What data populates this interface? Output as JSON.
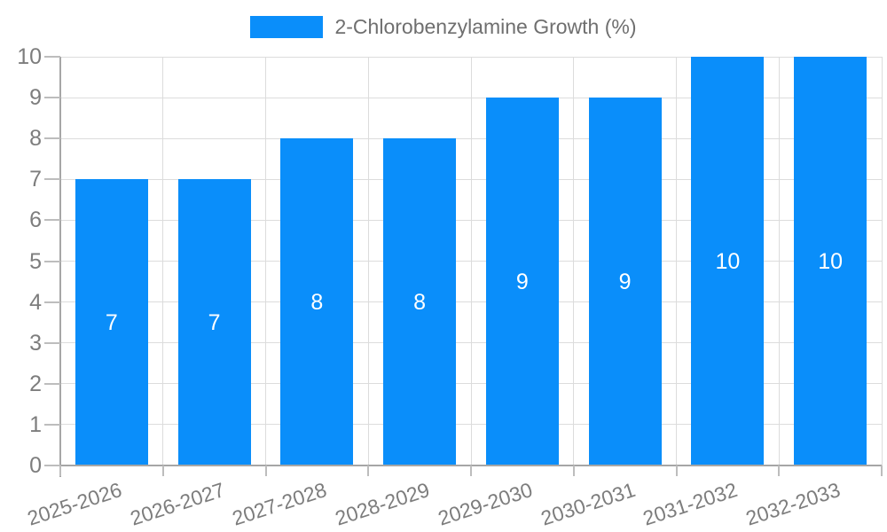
{
  "legend": {
    "label": "2-Chlorobenzylamine Growth (%)"
  },
  "chart_data": {
    "type": "bar",
    "title": "2-Chlorobenzylamine Growth (%)",
    "xlabel": "",
    "ylabel": "",
    "categories": [
      "2025-2026",
      "2026-2027",
      "2027-2028",
      "2028-2029",
      "2029-2030",
      "2030-2031",
      "2031-2032",
      "2032-2033"
    ],
    "series": [
      {
        "name": "2-Chlorobenzylamine Growth (%)",
        "values": [
          7,
          7,
          8,
          8,
          9,
          9,
          10,
          10
        ]
      }
    ],
    "value_labels": [
      "7",
      "7",
      "8",
      "8",
      "9",
      "9",
      "10",
      "10"
    ],
    "ytick_labels": [
      "0",
      "1",
      "2",
      "3",
      "4",
      "5",
      "6",
      "7",
      "8",
      "9",
      "10"
    ],
    "ylim": [
      0,
      10
    ],
    "ytick_step": 1,
    "grid": true,
    "legend_position": "top-center",
    "colors": {
      "bar": "#0a8efa",
      "value_label": "#ffffff",
      "tick_label": "#7d7d7d",
      "grid": "#dcdcdc",
      "axis": "#a6a6a6",
      "tick_mark": "#bdbdbd",
      "background": "#ffffff"
    }
  }
}
